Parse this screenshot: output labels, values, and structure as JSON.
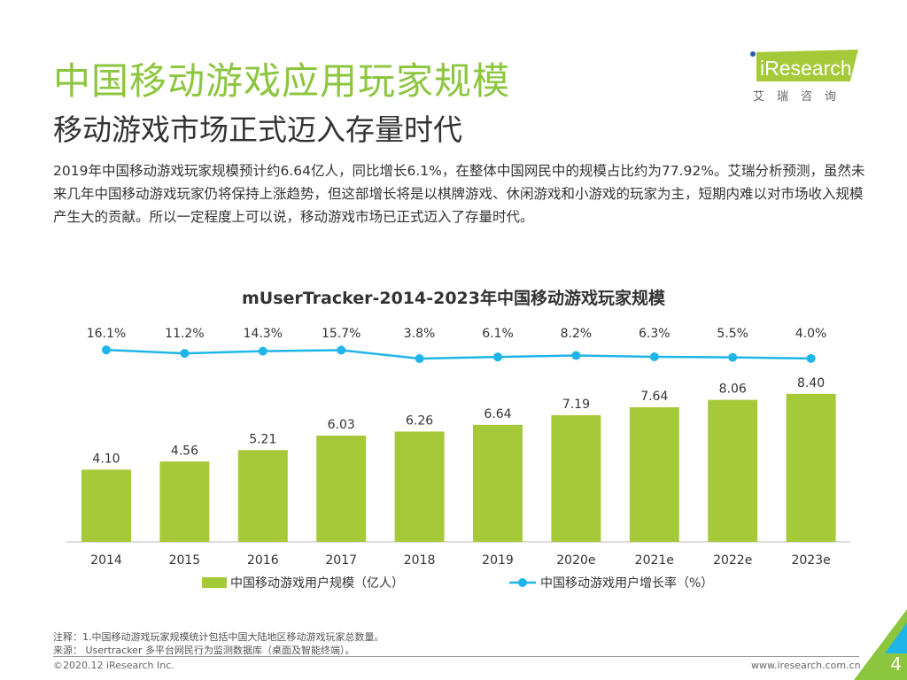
{
  "header": {
    "title": "中国移动游戏应用玩家规模",
    "subtitle": "移动游戏市场正式迈入存量时代",
    "paragraph": "2019年中国移动游戏玩家规模预计约6.64亿人，同比增长6.1%，在整体中国网民中的规模占比约为77.92%。艾瑞分析预测，虽然未来几年中国移动游戏玩家仍将保持上涨趋势，但这部增长将是以棋牌游戏、休闲游戏和小游戏的玩家为主，短期内难以对市场收入规模产生大的贡献。所以一定程度上可以说，移动游戏市场已正式迈入了存量时代。"
  },
  "logo": {
    "text": "iResearch",
    "cn": "艾瑞咨询"
  },
  "chart_data": {
    "type": "bar+line",
    "title": "mUserTracker-2014-2023年中国移动游戏玩家规模",
    "categories": [
      "2014",
      "2015",
      "2016",
      "2017",
      "2018",
      "2019",
      "2020e",
      "2021e",
      "2022e",
      "2023e"
    ],
    "series": [
      {
        "name": "中国移动游戏用户规模（亿人）",
        "type": "bar",
        "color": "#a6c93a",
        "values": [
          4.1,
          4.56,
          5.21,
          6.03,
          6.26,
          6.64,
          7.19,
          7.64,
          8.06,
          8.4
        ]
      },
      {
        "name": "中国移动游戏用户增长率（%）",
        "type": "line",
        "color": "#1fb5e8",
        "values": [
          16.1,
          11.2,
          14.3,
          15.7,
          3.8,
          6.1,
          8.2,
          6.3,
          5.5,
          4.0
        ]
      }
    ],
    "legend": "bottom",
    "grid": false
  },
  "footer": {
    "note": "注释：1.中国移动游戏玩家规模统计包括中国大陆地区移动游戏玩家总数量。",
    "source": "来源： Usertracker 多平台网民行为监测数据库（桌面及智能终端）。",
    "copyright": "©2020.12 iResearch Inc.",
    "url": "www.iresearch.com.cn",
    "page": "4"
  }
}
